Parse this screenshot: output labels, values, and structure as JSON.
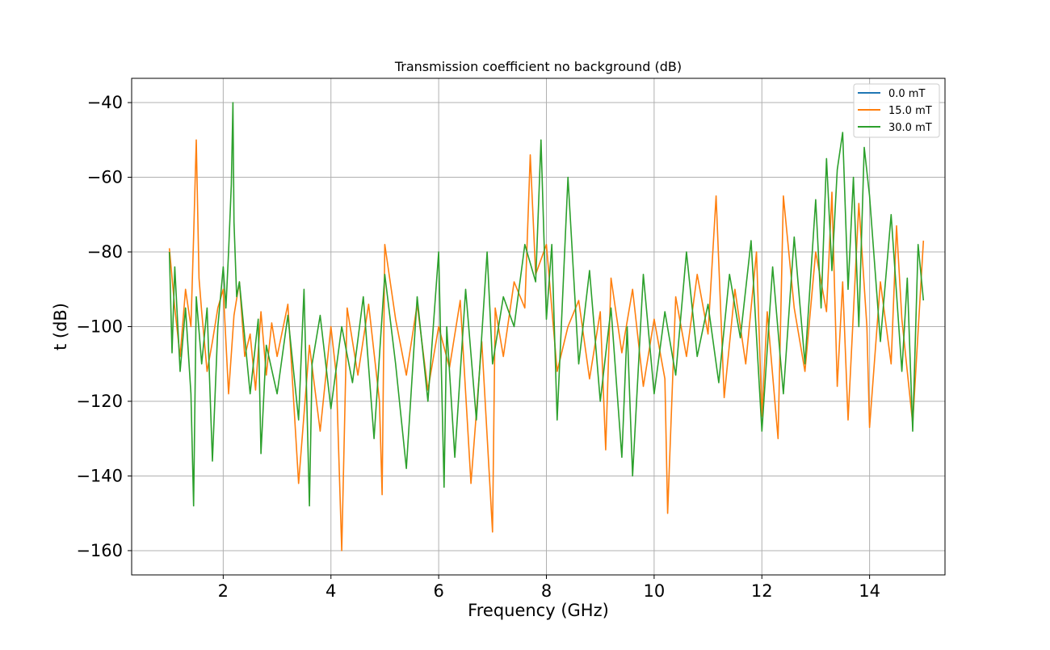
{
  "chart_data": {
    "type": "line",
    "title": "Transmission coefficient no background (dB)",
    "xlabel": "Frequency (GHz)",
    "ylabel": "t (dB)",
    "xlim": [
      0.3,
      15.4
    ],
    "ylim": [
      -166.5,
      -33.5
    ],
    "xticks": [
      2,
      4,
      6,
      8,
      10,
      12,
      14
    ],
    "yticks": [
      -40,
      -60,
      -80,
      -100,
      -120,
      -140,
      -160
    ],
    "grid": true,
    "legend": {
      "placement": "top-right",
      "entries": [
        "0.0 mT",
        "15.0 mT",
        "30.0 mT"
      ]
    },
    "series": [
      {
        "name": "0.0 mT",
        "color": "#1f77b4",
        "x": [],
        "y": []
      },
      {
        "name": "15.0 mT",
        "color": "#ff7f0e",
        "x": [
          1.0,
          1.1,
          1.2,
          1.3,
          1.4,
          1.45,
          1.5,
          1.55,
          1.6,
          1.7,
          1.8,
          1.9,
          2.0,
          2.1,
          2.2,
          2.3,
          2.4,
          2.5,
          2.6,
          2.7,
          2.8,
          2.9,
          3.0,
          3.2,
          3.4,
          3.6,
          3.8,
          4.0,
          4.1,
          4.2,
          4.3,
          4.5,
          4.7,
          4.9,
          4.95,
          5.0,
          5.2,
          5.4,
          5.6,
          5.8,
          6.0,
          6.2,
          6.4,
          6.6,
          6.8,
          7.0,
          7.05,
          7.2,
          7.4,
          7.6,
          7.7,
          7.8,
          8.0,
          8.2,
          8.4,
          8.6,
          8.8,
          9.0,
          9.1,
          9.2,
          9.4,
          9.6,
          9.8,
          10.0,
          10.2,
          10.25,
          10.4,
          10.6,
          10.8,
          11.0,
          11.15,
          11.3,
          11.5,
          11.7,
          11.9,
          12.0,
          12.1,
          12.3,
          12.4,
          12.6,
          12.8,
          13.0,
          13.2,
          13.3,
          13.4,
          13.5,
          13.6,
          13.8,
          13.95,
          14.0,
          14.2,
          14.4,
          14.5,
          14.6,
          14.8,
          15.0
        ],
        "y": [
          -79,
          -95,
          -108,
          -90,
          -100,
          -76,
          -50,
          -87,
          -96,
          -112,
          -104,
          -95,
          -90,
          -118,
          -97,
          -88,
          -108,
          -102,
          -117,
          -96,
          -113,
          -99,
          -108,
          -94,
          -142,
          -105,
          -128,
          -100,
          -113,
          -160,
          -95,
          -113,
          -94,
          -120,
          -145,
          -78,
          -98,
          -113,
          -94,
          -117,
          -100,
          -111,
          -93,
          -142,
          -104,
          -155,
          -95,
          -108,
          -88,
          -95,
          -54,
          -86,
          -78,
          -112,
          -100,
          -93,
          -114,
          -96,
          -133,
          -87,
          -107,
          -90,
          -116,
          -98,
          -114,
          -150,
          -92,
          -108,
          -86,
          -102,
          -65,
          -119,
          -90,
          -110,
          -80,
          -124,
          -96,
          -130,
          -65,
          -95,
          -112,
          -80,
          -96,
          -64,
          -116,
          -88,
          -125,
          -67,
          -100,
          -127,
          -88,
          -110,
          -73,
          -98,
          -126,
          -77
        ]
      },
      {
        "name": "30.0 mT",
        "color": "#2ca02c",
        "x": [
          1.0,
          1.05,
          1.1,
          1.2,
          1.3,
          1.4,
          1.45,
          1.5,
          1.6,
          1.7,
          1.8,
          1.9,
          2.0,
          2.05,
          2.1,
          2.15,
          2.18,
          2.2,
          2.25,
          2.3,
          2.5,
          2.65,
          2.7,
          2.8,
          3.0,
          3.2,
          3.4,
          3.5,
          3.6,
          3.65,
          3.8,
          4.0,
          4.2,
          4.4,
          4.6,
          4.8,
          5.0,
          5.2,
          5.4,
          5.6,
          5.8,
          6.0,
          6.1,
          6.15,
          6.3,
          6.5,
          6.7,
          6.9,
          7.0,
          7.2,
          7.4,
          7.6,
          7.8,
          7.9,
          8.0,
          8.1,
          8.2,
          8.4,
          8.6,
          8.8,
          9.0,
          9.2,
          9.4,
          9.5,
          9.6,
          9.8,
          10.0,
          10.2,
          10.4,
          10.6,
          10.8,
          11.0,
          11.2,
          11.4,
          11.6,
          11.8,
          12.0,
          12.2,
          12.4,
          12.6,
          12.8,
          13.0,
          13.1,
          13.2,
          13.3,
          13.4,
          13.5,
          13.6,
          13.7,
          13.8,
          13.9,
          14.0,
          14.2,
          14.4,
          14.6,
          14.7,
          14.8,
          14.9,
          15.0
        ],
        "y": [
          -80,
          -107,
          -84,
          -112,
          -95,
          -118,
          -148,
          -92,
          -110,
          -95,
          -136,
          -100,
          -84,
          -95,
          -80,
          -62,
          -40,
          -72,
          -92,
          -88,
          -118,
          -98,
          -134,
          -105,
          -118,
          -97,
          -125,
          -90,
          -148,
          -110,
          -97,
          -122,
          -100,
          -115,
          -92,
          -130,
          -86,
          -110,
          -138,
          -92,
          -120,
          -80,
          -143,
          -100,
          -135,
          -90,
          -125,
          -80,
          -110,
          -92,
          -100,
          -78,
          -88,
          -50,
          -98,
          -78,
          -125,
          -60,
          -110,
          -85,
          -120,
          -95,
          -135,
          -100,
          -140,
          -86,
          -118,
          -96,
          -113,
          -80,
          -108,
          -94,
          -115,
          -86,
          -103,
          -77,
          -128,
          -84,
          -118,
          -76,
          -110,
          -66,
          -95,
          -55,
          -85,
          -58,
          -48,
          -90,
          -60,
          -100,
          -52,
          -65,
          -104,
          -70,
          -112,
          -87,
          -128,
          -78,
          -93
        ]
      }
    ]
  }
}
